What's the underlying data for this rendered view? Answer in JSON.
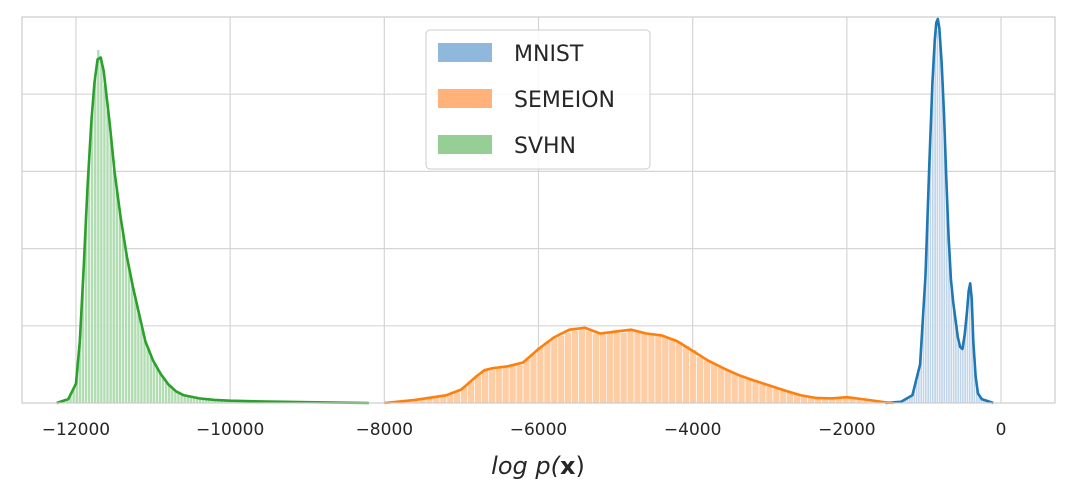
{
  "chart_data": {
    "type": "histogram",
    "xlabel": "log p(x)",
    "xlabel_parts": {
      "prefix": "log p(",
      "bold": "x",
      "suffix": ")"
    },
    "xlim": [
      -12700,
      700
    ],
    "ylim": [
      0,
      1.0
    ],
    "xticks": [
      -12000,
      -10000,
      -8000,
      -6000,
      -4000,
      -2000,
      0
    ],
    "xtick_labels": [
      "−12000",
      "−10000",
      "−8000",
      "−6000",
      "−4000",
      "−2000",
      "0"
    ],
    "ygrid_count": 5,
    "grid": true,
    "legend_placement": "top-center",
    "series": [
      {
        "name": "MNIST",
        "color": "#1f77b4",
        "fill": "#b8d0e8",
        "kde": [
          [
            -1500,
            0
          ],
          [
            -1300,
            0.003
          ],
          [
            -1150,
            0.02
          ],
          [
            -1050,
            0.1
          ],
          [
            -980,
            0.33
          ],
          [
            -930,
            0.62
          ],
          [
            -890,
            0.83
          ],
          [
            -860,
            0.94
          ],
          [
            -840,
            0.985
          ],
          [
            -820,
            0.995
          ],
          [
            -800,
            0.97
          ],
          [
            -770,
            0.88
          ],
          [
            -740,
            0.75
          ],
          [
            -710,
            0.58
          ],
          [
            -680,
            0.43
          ],
          [
            -650,
            0.32
          ],
          [
            -620,
            0.26
          ],
          [
            -590,
            0.215
          ],
          [
            -560,
            0.17
          ],
          [
            -530,
            0.145
          ],
          [
            -500,
            0.14
          ],
          [
            -470,
            0.18
          ],
          [
            -440,
            0.24
          ],
          [
            -420,
            0.29
          ],
          [
            -400,
            0.31
          ],
          [
            -380,
            0.27
          ],
          [
            -360,
            0.16
          ],
          [
            -330,
            0.07
          ],
          [
            -300,
            0.025
          ],
          [
            -250,
            0.01
          ],
          [
            -100,
            0
          ]
        ],
        "bar_width": 30
      },
      {
        "name": "SEMEION",
        "color": "#ff7f0e",
        "fill": "#ffc89a",
        "kde": [
          [
            -8000,
            0
          ],
          [
            -7600,
            0.008
          ],
          [
            -7200,
            0.02
          ],
          [
            -7000,
            0.035
          ],
          [
            -6800,
            0.07
          ],
          [
            -6700,
            0.085
          ],
          [
            -6600,
            0.09
          ],
          [
            -6400,
            0.095
          ],
          [
            -6200,
            0.105
          ],
          [
            -6000,
            0.14
          ],
          [
            -5800,
            0.17
          ],
          [
            -5600,
            0.19
          ],
          [
            -5400,
            0.195
          ],
          [
            -5200,
            0.18
          ],
          [
            -5000,
            0.185
          ],
          [
            -4800,
            0.19
          ],
          [
            -4600,
            0.18
          ],
          [
            -4400,
            0.175
          ],
          [
            -4200,
            0.16
          ],
          [
            -4000,
            0.135
          ],
          [
            -3800,
            0.11
          ],
          [
            -3600,
            0.09
          ],
          [
            -3400,
            0.072
          ],
          [
            -3200,
            0.058
          ],
          [
            -3000,
            0.045
          ],
          [
            -2800,
            0.032
          ],
          [
            -2600,
            0.02
          ],
          [
            -2400,
            0.013
          ],
          [
            -2200,
            0.012
          ],
          [
            -2000,
            0.015
          ],
          [
            -1800,
            0.01
          ],
          [
            -1500,
            0.002
          ],
          [
            -1400,
            0
          ]
        ],
        "bar_width": 90
      },
      {
        "name": "SVHN",
        "color": "#2ca02c",
        "fill": "#a9d8a9",
        "kde": [
          [
            -12250,
            0
          ],
          [
            -12100,
            0.01
          ],
          [
            -12000,
            0.05
          ],
          [
            -11950,
            0.16
          ],
          [
            -11900,
            0.35
          ],
          [
            -11850,
            0.56
          ],
          [
            -11800,
            0.73
          ],
          [
            -11760,
            0.83
          ],
          [
            -11720,
            0.89
          ],
          [
            -11680,
            0.895
          ],
          [
            -11640,
            0.86
          ],
          [
            -11600,
            0.79
          ],
          [
            -11560,
            0.72
          ],
          [
            -11500,
            0.6
          ],
          [
            -11420,
            0.48
          ],
          [
            -11340,
            0.38
          ],
          [
            -11260,
            0.3
          ],
          [
            -11180,
            0.23
          ],
          [
            -11100,
            0.16
          ],
          [
            -11000,
            0.11
          ],
          [
            -10900,
            0.075
          ],
          [
            -10800,
            0.048
          ],
          [
            -10700,
            0.03
          ],
          [
            -10600,
            0.02
          ],
          [
            -10400,
            0.012
          ],
          [
            -10200,
            0.008
          ],
          [
            -10000,
            0.006
          ],
          [
            -9600,
            0.004
          ],
          [
            -9000,
            0.002
          ],
          [
            -8200,
            0
          ]
        ],
        "bar_width": 40
      }
    ]
  }
}
